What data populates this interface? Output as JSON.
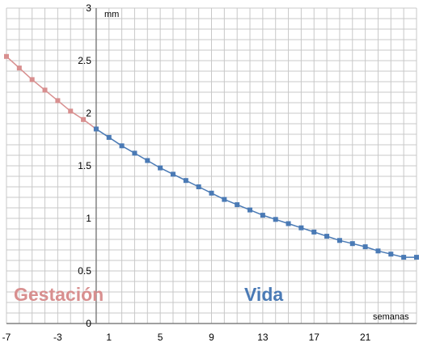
{
  "chart_data": {
    "type": "line",
    "y_unit_label": "mm",
    "x_unit_label": "semanas",
    "region_labels": {
      "before": "Gestación",
      "after": "Vida"
    },
    "xlim": [
      -7,
      25
    ],
    "ylim": [
      0,
      3
    ],
    "x_ticks": [
      -7,
      -3,
      1,
      5,
      9,
      13,
      17,
      21
    ],
    "x_tick_labels": [
      "-7",
      "-3",
      "1",
      "5",
      "9",
      "13",
      "17",
      "21"
    ],
    "y_ticks": [
      0,
      0.5,
      1,
      1.5,
      2,
      2.5,
      3
    ],
    "y_tick_labels": [
      "0",
      "0.5",
      "1",
      "1.5",
      "2",
      "2.5",
      "3"
    ],
    "grid": true,
    "colors": {
      "gestacion": "#d88f8f",
      "vida": "#4a7ab5",
      "axis": "#808080",
      "grid": "#c8c8c8"
    },
    "series": [
      {
        "name": "Gestación",
        "x": [
          -7,
          -6,
          -5,
          -4,
          -3,
          -2,
          -1,
          0
        ],
        "values": [
          2.54,
          2.43,
          2.32,
          2.22,
          2.12,
          2.02,
          1.94,
          1.85
        ]
      },
      {
        "name": "Vida",
        "x": [
          0,
          1,
          2,
          3,
          4,
          5,
          6,
          7,
          8,
          9,
          10,
          11,
          12,
          13,
          14,
          15,
          16,
          17,
          18,
          19,
          20,
          21,
          22,
          23,
          24,
          25
        ],
        "values": [
          1.85,
          1.77,
          1.69,
          1.62,
          1.55,
          1.48,
          1.42,
          1.36,
          1.3,
          1.24,
          1.18,
          1.13,
          1.08,
          1.03,
          0.99,
          0.95,
          0.91,
          0.87,
          0.83,
          0.79,
          0.76,
          0.73,
          0.69,
          0.66,
          0.63,
          0.63
        ]
      }
    ]
  }
}
